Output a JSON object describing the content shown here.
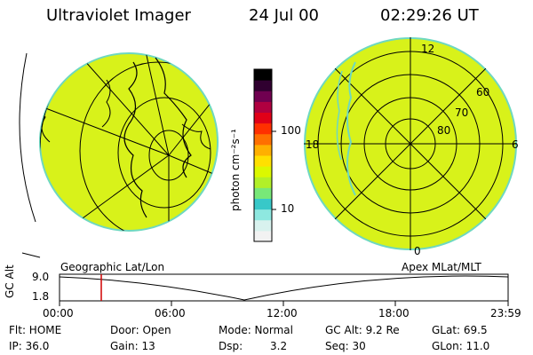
{
  "header": {
    "title": "Ultraviolet Imager",
    "date": "24 Jul 00",
    "time": "02:29:26 UT"
  },
  "colorbar": {
    "unit_label": "photon cm⁻²s⁻¹",
    "ticks": [
      "100",
      "10"
    ],
    "colors": [
      "#f2f2f2",
      "#d8f2ee",
      "#8ee8e0",
      "#38c8c8",
      "#78e878",
      "#b2f028",
      "#dcf800",
      "#ffe000",
      "#ffb000",
      "#ff7000",
      "#ff3000",
      "#e00018",
      "#b00040",
      "#700050",
      "#300030",
      "#000000"
    ]
  },
  "left_panel": {
    "label": "Geographic Lat/Lon"
  },
  "right_panel": {
    "label": "Apex MLat/MLT",
    "lat_labels": [
      "80",
      "70",
      "60"
    ],
    "mlt_labels": {
      "top": "12",
      "left": "18",
      "right": "6",
      "bottom": "0"
    }
  },
  "timeline": {
    "axis_label": "GC Alt",
    "y_top": "9.0",
    "y_bottom": "1.8",
    "x_ticks": [
      "00:00",
      "06:00",
      "12:00",
      "18:00",
      "23:59"
    ]
  },
  "status": {
    "flt": "Flt: HOME",
    "ip": "IP: 36.0",
    "door": "Door: Open",
    "gain": "Gain: 13",
    "mode": "Mode: Normal",
    "dsp_label": "Dsp:",
    "dsp_value": "3.2",
    "gc_alt": "GC Alt: 9.2 Re",
    "seq": "Seq: 30",
    "glat": "GLat:  69.5",
    "glon": "GLon:  11.0"
  }
}
